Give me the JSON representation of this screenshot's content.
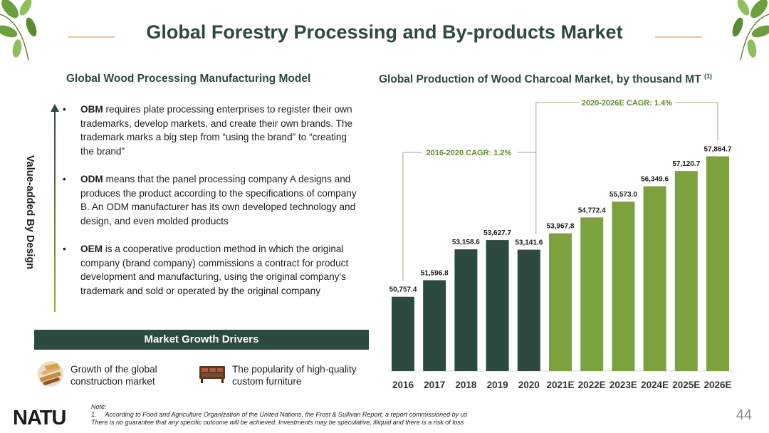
{
  "title": "Global Forestry Processing and By-products Market",
  "left_section": {
    "heading": "Global Wood Processing Manufacturing Model",
    "axis_label": "Value-added By Design",
    "bullets": [
      {
        "term": "OBM",
        "text": " requires plate processing enterprises to register their own trademarks, develop markets, and create their own brands. The trademark marks a big step from “using the brand” to “creating the brand”"
      },
      {
        "term": "ODM",
        "text": " means that the panel processing company A designs and produces the product according to the specifications of company B. An ODM manufacturer has its own developed technology and design, and even molded products"
      },
      {
        "term": "OEM",
        "text": " is a cooperative production method in which the original company (brand company) commissions a contract for product development and manufacturing, using the original company's trademark and sold or operated by the original company"
      }
    ]
  },
  "drivers": {
    "heading": "Market Growth Drivers",
    "items": [
      {
        "label": "Growth of the global construction market",
        "icon": "construction-icon"
      },
      {
        "label": "The popularity of high-quality custom furniture",
        "icon": "furniture-icon"
      }
    ]
  },
  "chart_heading": {
    "text": "Global Production of Wood Charcoal Market, by thousand MT",
    "footnote_marker": "(1)"
  },
  "chart_data": {
    "type": "bar",
    "title": "Global Production of Wood Charcoal Market, by thousand MT",
    "categories": [
      "2016",
      "2017",
      "2018",
      "2019",
      "2020",
      "2021E",
      "2022E",
      "2023E",
      "2024E",
      "2025E",
      "2026E"
    ],
    "values": [
      50757.4,
      51596.8,
      53158.6,
      53627.7,
      53141.6,
      53967.8,
      54772.4,
      55573.0,
      56349.6,
      57120.7,
      57864.7
    ],
    "value_labels": [
      "50,757.4",
      "51,596.8",
      "53,158.6",
      "53,627.7",
      "53,141.6",
      "53,967.8",
      "54,772.4",
      "55,573.0",
      "56,349.6",
      "57,120.7",
      "57,864.7"
    ],
    "historical_count": 5,
    "ylim": [
      47000,
      59000
    ],
    "colors": {
      "historical": "#2d4a3e",
      "forecast": "#7ba23f"
    },
    "annotations": [
      {
        "label": "2016-2020 CAGR: 1.2%",
        "from_index": 0,
        "to_index": 4
      },
      {
        "label": "2020-2026E CAGR: 1.4%",
        "from_index": 4,
        "to_index": 10
      }
    ],
    "xlabel": "",
    "ylabel": "",
    "grid": false
  },
  "footer": {
    "note_title": "Note:",
    "note_1": "1.     According to Food and Agriculture Organization of the United Nations, the Frost & Sullivan Report, a report commissioned by us",
    "note_2": "There is no guarantee that any specific outcome will be achieved. Investments may be speculative, illiquid and there is a risk of loss",
    "logo": "NATU",
    "page_number": "44"
  }
}
